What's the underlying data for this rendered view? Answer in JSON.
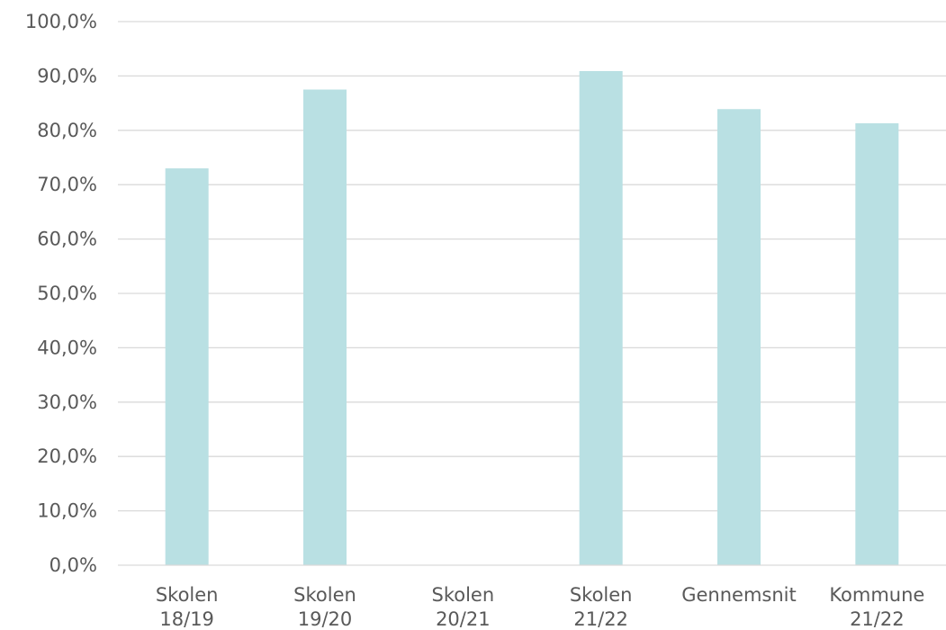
{
  "chart_data": {
    "type": "bar",
    "categories": [
      [
        "Skolen",
        "18/19"
      ],
      [
        "Skolen",
        "19/20"
      ],
      [
        "Skolen",
        "20/21"
      ],
      [
        "Skolen",
        "21/22"
      ],
      [
        "Gennemsnit"
      ],
      [
        "Kommune",
        "21/22"
      ]
    ],
    "values": [
      73.0,
      87.5,
      null,
      90.9,
      83.9,
      81.3
    ],
    "ylim": [
      0,
      100
    ],
    "yticks": [
      "0,0%",
      "10,0%",
      "20,0%",
      "30,0%",
      "40,0%",
      "50,0%",
      "60,0%",
      "70,0%",
      "80,0%",
      "90,0%",
      "100,0%"
    ],
    "ytick_values": [
      0,
      10,
      20,
      30,
      40,
      50,
      60,
      70,
      80,
      90,
      100
    ],
    "title": "",
    "xlabel": "",
    "ylabel": "",
    "grid": true,
    "legend": "none",
    "bar_color": "#b9e0e3",
    "grid_color": "#d9d9d9",
    "text_color": "#595959"
  }
}
